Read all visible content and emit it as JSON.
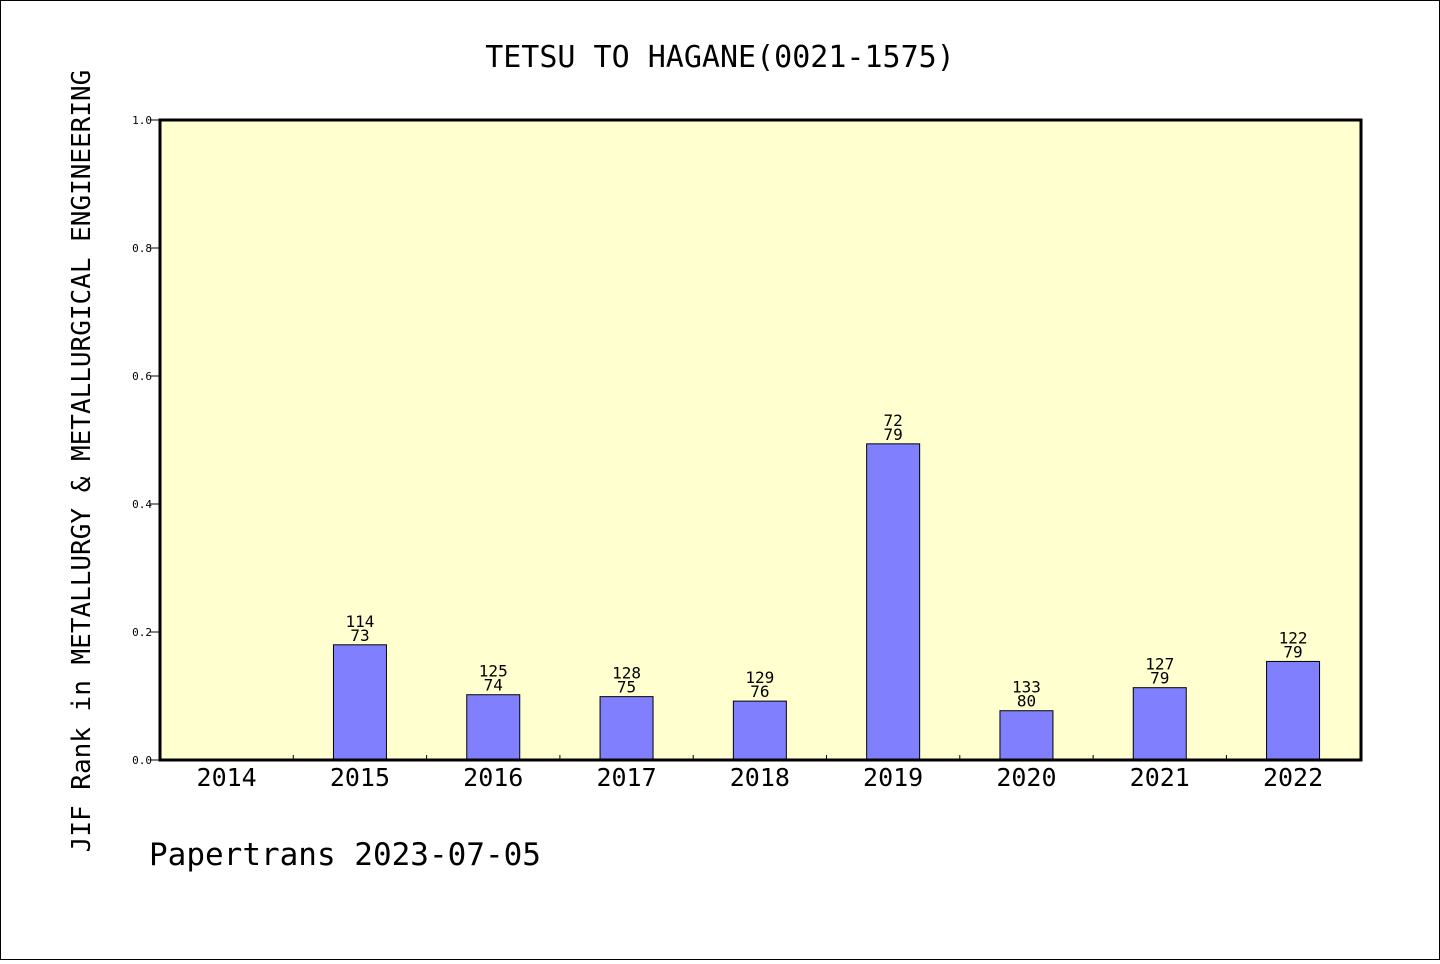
{
  "chart_data": {
    "type": "bar",
    "title": "TETSU TO HAGANE(0021-1575)",
    "xlabel": "",
    "ylabel": "JIF Rank in METALLURGY & METALLURGICAL ENGINEERING",
    "ylim": [
      0,
      1.0
    ],
    "yticks": [
      "0.0",
      "0.2",
      "0.4",
      "0.6",
      "0.8",
      "1.0"
    ],
    "categories": [
      "2014",
      "2015",
      "2016",
      "2017",
      "2018",
      "2019",
      "2020",
      "2021",
      "2022"
    ],
    "values": [
      null,
      0.18,
      0.102,
      0.099,
      0.092,
      0.494,
      0.077,
      0.113,
      0.154
    ],
    "bar_labels": [
      null,
      [
        "114",
        "73"
      ],
      [
        "125",
        "74"
      ],
      [
        "128",
        "75"
      ],
      [
        "129",
        "76"
      ],
      [
        "72",
        "79"
      ],
      [
        "133",
        "80"
      ],
      [
        "127",
        "79"
      ],
      [
        "122",
        "79"
      ]
    ],
    "plot_background": "#ffffd0",
    "bar_color": "#8080ff",
    "grid": false,
    "legend": "none"
  },
  "footer": "Papertrans 2023-07-05"
}
